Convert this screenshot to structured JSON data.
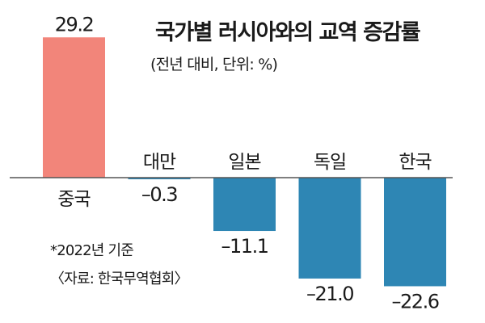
{
  "chart_data": {
    "type": "bar",
    "title": "국가별 러시아와의 교역 증감률",
    "subtitle": "(전년 대비, 단위: %)",
    "categories": [
      "중국",
      "대만",
      "일본",
      "독일",
      "한국"
    ],
    "values": [
      29.2,
      -0.3,
      -11.1,
      -21.0,
      -22.6
    ],
    "value_labels": [
      "29.2",
      "–0.3",
      "–11.1",
      "–21.0",
      "–22.6"
    ],
    "colors": {
      "positive": "#f2857a",
      "negative": "#2e86b4",
      "baseline": "#555555"
    },
    "ylim": [
      -26,
      32
    ],
    "grid": false,
    "legend": "none"
  },
  "notes": {
    "basis": "*2022년 기준",
    "source": "〈자료: 한국무역협회〉"
  }
}
